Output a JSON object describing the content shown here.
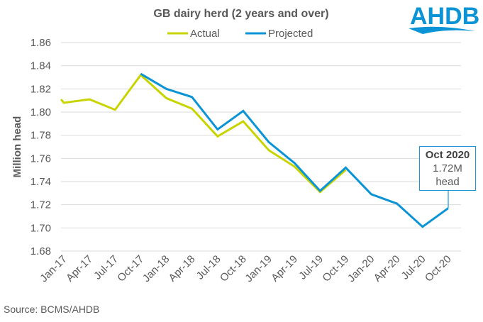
{
  "chart_data": {
    "type": "line",
    "title": "GB dairy herd (2 years and over)",
    "xlabel": "",
    "ylabel": "Million head",
    "ylim": [
      1.68,
      1.86
    ],
    "yticks": [
      "1.68",
      "1.70",
      "1.72",
      "1.74",
      "1.76",
      "1.78",
      "1.80",
      "1.82",
      "1.84",
      "1.86"
    ],
    "grid": true,
    "legend_position": "top-center",
    "categories": [
      "Jan-17",
      "Apr-17",
      "Jul-17",
      "Oct-17",
      "Jan-18",
      "Apr-18",
      "Jul-18",
      "Oct-18",
      "Jan-19",
      "Apr-19",
      "Jul-19",
      "Oct-19",
      "Jan-20",
      "Apr-20",
      "Jul-20",
      "Oct-20"
    ],
    "series": [
      {
        "name": "Actual",
        "color": "#c8d400",
        "values": [
          1.808,
          1.811,
          1.802,
          1.832,
          1.812,
          1.803,
          1.779,
          1.792,
          1.767,
          1.753,
          1.731,
          1.75,
          null,
          null,
          null,
          null
        ]
      },
      {
        "name": "Projected",
        "color": "#0a94d6",
        "values": [
          null,
          null,
          null,
          1.833,
          1.82,
          1.813,
          1.785,
          1.801,
          1.774,
          1.756,
          1.732,
          1.752,
          1.729,
          1.721,
          1.701,
          1.717
        ]
      }
    ],
    "annotation": {
      "title": "Oct 2020",
      "value": "1.72M",
      "unit": "head"
    },
    "source": "Source:  BCMS/AHDB"
  },
  "logo": "AHDB"
}
